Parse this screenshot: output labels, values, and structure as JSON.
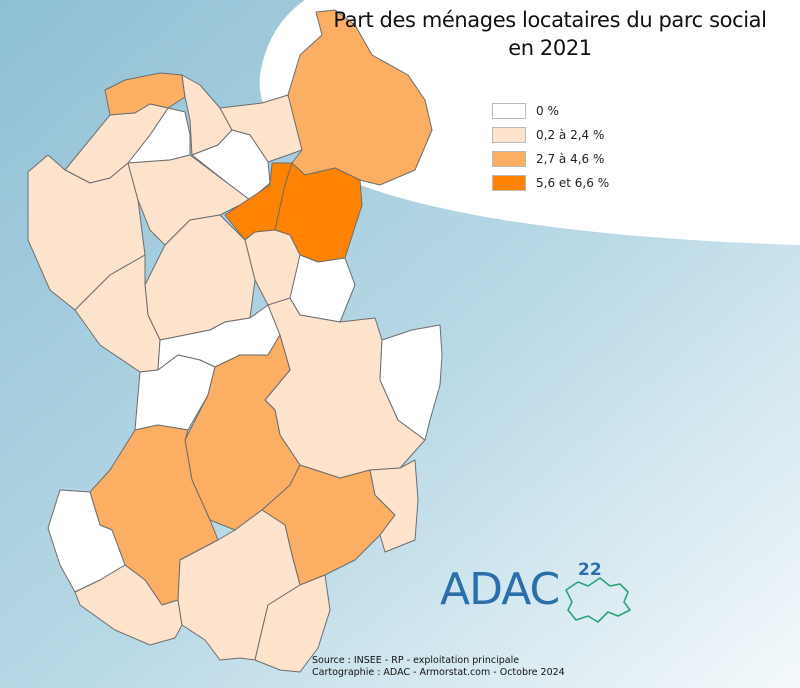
{
  "title": {
    "line1": "Part des ménages locataires du parc social",
    "line2": "en 2021"
  },
  "legend": [
    {
      "label": "0 %",
      "color": "#ffffff"
    },
    {
      "label": "0,2 à 2,4 %",
      "color": "#fde3cc"
    },
    {
      "label": "2,7 à 4,6 %",
      "color": "#fcae63"
    },
    {
      "label": "5,6 et 6,6 %",
      "color": "#ff8300"
    }
  ],
  "source": {
    "line1": "Source : INSEE - RP - exploitation principale",
    "line2": "Cartographie : ADAC - Armorstat.com - Octobre 2024"
  },
  "logo": {
    "text": "ADAC",
    "number": "22"
  },
  "colors": {
    "border": "#6d6d6d"
  }
}
